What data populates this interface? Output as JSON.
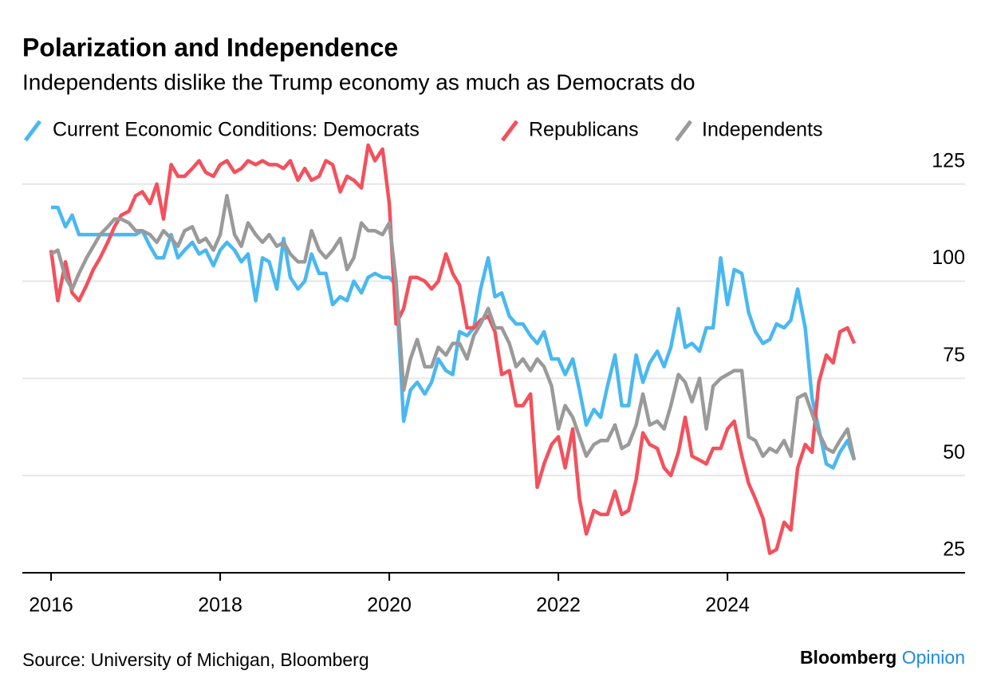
{
  "chart_data": {
    "type": "line",
    "title": "Polarization and Independence",
    "subtitle": "Independents dislike the Trump economy as much as Democrats do",
    "source": "Source: University of Michigan, Bloomberg",
    "brand": "Bloomberg",
    "brand_suffix": "Opinion",
    "x": [
      2016,
      2016.08,
      2016.17,
      2016.25,
      2016.33,
      2016.42,
      2016.5,
      2016.58,
      2016.67,
      2016.75,
      2016.83,
      2016.92,
      2017,
      2017.08,
      2017.17,
      2017.25,
      2017.33,
      2017.42,
      2017.5,
      2017.58,
      2017.67,
      2017.75,
      2017.83,
      2017.92,
      2018,
      2018.08,
      2018.17,
      2018.25,
      2018.33,
      2018.42,
      2018.5,
      2018.58,
      2018.67,
      2018.75,
      2018.83,
      2018.92,
      2019,
      2019.08,
      2019.17,
      2019.25,
      2019.33,
      2019.42,
      2019.5,
      2019.58,
      2019.67,
      2019.75,
      2019.83,
      2019.92,
      2020,
      2020.08,
      2020.17,
      2020.25,
      2020.33,
      2020.42,
      2020.5,
      2020.58,
      2020.67,
      2020.75,
      2020.83,
      2020.92,
      2021,
      2021.08,
      2021.17,
      2021.25,
      2021.33,
      2021.42,
      2021.5,
      2021.58,
      2021.67,
      2021.75,
      2021.83,
      2021.92,
      2022,
      2022.08,
      2022.17,
      2022.25,
      2022.33,
      2022.42,
      2022.5,
      2022.58,
      2022.67,
      2022.75,
      2022.83,
      2022.92,
      2023,
      2023.08,
      2023.17,
      2023.25,
      2023.33,
      2023.42,
      2023.5,
      2023.58,
      2023.67,
      2023.75,
      2023.83,
      2023.92,
      2024,
      2024.08,
      2024.17,
      2024.25,
      2024.33,
      2024.42,
      2024.5,
      2024.58,
      2024.67,
      2024.75,
      2024.83,
      2024.92,
      2025,
      2025.08,
      2025.17,
      2025.25,
      2025.33,
      2025.42,
      2025.5
    ],
    "series": [
      {
        "name": "Current Economic Conditions: Democrats",
        "color": "#4ab8f0",
        "values": [
          119,
          119,
          114,
          117,
          112,
          112,
          112,
          112,
          112,
          112,
          112,
          112,
          112,
          113,
          109,
          106,
          106,
          112,
          106,
          108,
          110,
          107,
          108,
          104,
          108,
          110,
          108,
          105,
          107,
          95,
          106,
          105,
          98,
          111,
          101,
          98,
          100,
          107,
          102,
          102,
          94,
          96,
          95,
          100,
          97,
          101,
          102,
          101,
          101,
          99,
          64,
          72,
          74,
          71,
          74,
          80,
          77,
          76,
          87,
          86,
          88,
          98,
          106,
          96,
          97,
          91,
          89,
          89,
          86,
          84,
          87,
          80,
          80,
          76,
          80,
          72,
          63,
          67,
          65,
          73,
          81,
          68,
          68,
          81,
          74,
          79,
          82,
          78,
          83,
          93,
          83,
          84,
          82,
          88,
          88,
          106,
          94,
          103,
          102,
          92,
          87,
          84,
          85,
          89,
          88,
          90,
          98,
          88,
          70,
          62,
          53,
          52,
          56,
          59,
          54
        ]
      },
      {
        "name": "Republicans",
        "color": "#f2515d",
        "values": [
          108,
          95,
          105,
          97,
          95,
          99,
          103,
          106,
          110,
          114,
          117,
          118,
          122,
          123,
          120,
          125,
          116,
          130,
          127,
          127,
          129,
          131,
          128,
          127,
          130,
          131,
          128,
          129,
          131,
          130,
          131,
          130,
          130,
          129,
          131,
          126,
          129,
          126,
          127,
          131,
          130,
          123,
          127,
          126,
          124,
          135,
          131,
          134,
          120,
          89,
          93,
          101,
          101,
          100,
          98,
          100,
          107,
          102,
          99,
          88,
          88,
          90,
          91,
          87,
          76,
          77,
          68,
          68,
          71,
          47,
          53,
          58,
          60,
          52,
          62,
          44,
          35,
          41,
          40,
          40,
          46,
          40,
          41,
          49,
          61,
          58,
          57,
          52,
          50,
          56,
          65,
          55,
          54,
          53,
          57,
          57,
          62,
          64,
          55,
          48,
          44,
          39,
          30,
          31,
          38,
          36,
          52,
          58,
          56,
          74,
          81,
          79,
          87,
          88,
          84
        ]
      },
      {
        "name": "Independents",
        "color": "#9a9a9a",
        "values": [
          107,
          108,
          101,
          98,
          102,
          106,
          109,
          112,
          114,
          116,
          116,
          115,
          113,
          113,
          112,
          110,
          113,
          111,
          109,
          113,
          114,
          110,
          111,
          108,
          112,
          122,
          112,
          109,
          115,
          112,
          110,
          112,
          109,
          110,
          107,
          105,
          105,
          113,
          108,
          106,
          108,
          111,
          103,
          106,
          115,
          113,
          113,
          112,
          115,
          100,
          72,
          80,
          85,
          78,
          78,
          83,
          81,
          84,
          84,
          80,
          86,
          89,
          93,
          88,
          88,
          84,
          78,
          80,
          77,
          80,
          78,
          73,
          62,
          68,
          65,
          60,
          55,
          58,
          59,
          59,
          63,
          57,
          58,
          63,
          71,
          63,
          64,
          62,
          68,
          76,
          74,
          69,
          75,
          62,
          73,
          75,
          76,
          77,
          77,
          60,
          59,
          55,
          57,
          56,
          59,
          55,
          70,
          71,
          66,
          61,
          57,
          56,
          59,
          62,
          54
        ]
      }
    ],
    "xlim": [
      2015.66,
      2026.81
    ],
    "xticks": [
      2016,
      2018,
      2020,
      2022,
      2024
    ],
    "ylim": [
      25,
      135
    ],
    "yticks": [
      25,
      50,
      75,
      100,
      125
    ],
    "grid": true
  }
}
